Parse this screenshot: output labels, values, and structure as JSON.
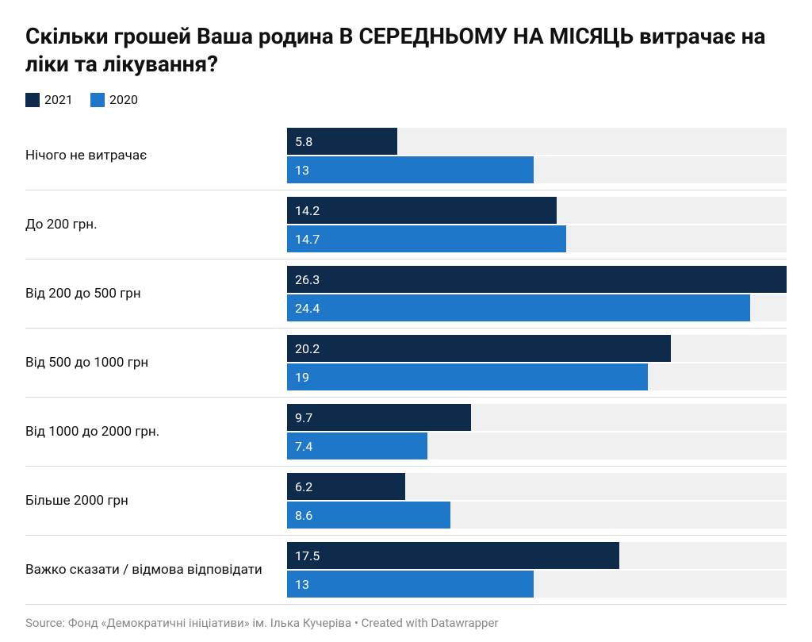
{
  "title": "Скільки грошей Ваша родина В СЕРЕДНЬОМУ НА МІСЯЦЬ витрачає на ліки та лікування?",
  "legend": {
    "series1": {
      "label": "2021",
      "color": "#0f2b4c"
    },
    "series2": {
      "label": "2020",
      "color": "#1f77c9"
    }
  },
  "chart": {
    "type": "bar",
    "orientation": "horizontal",
    "grouped": true,
    "track_color": "#f0f0f0",
    "value_text_color": "#ffffff",
    "label_fontsize": 17,
    "value_fontsize": 16,
    "max_value": 26.3,
    "categories": [
      {
        "label": "Нічого не витрачає",
        "v1": 5.8,
        "v2": 13
      },
      {
        "label": "До 200 грн.",
        "v1": 14.2,
        "v2": 14.7
      },
      {
        "label": "Від 200 до 500 грн",
        "v1": 26.3,
        "v2": 24.4
      },
      {
        "label": "Від 500 до 1000 грн",
        "v1": 20.2,
        "v2": 19
      },
      {
        "label": "Від 1000 до 2000 грн.",
        "v1": 9.7,
        "v2": 7.4
      },
      {
        "label": "Більше 2000 грн",
        "v1": 6.2,
        "v2": 8.6
      },
      {
        "label": "Важко сказати / відмова відповідати",
        "v1": 17.5,
        "v2": 13
      }
    ]
  },
  "source": "Source: Фонд «Демократичні ініціативи» ім. Ілька Кучеріва • Created with Datawrapper"
}
